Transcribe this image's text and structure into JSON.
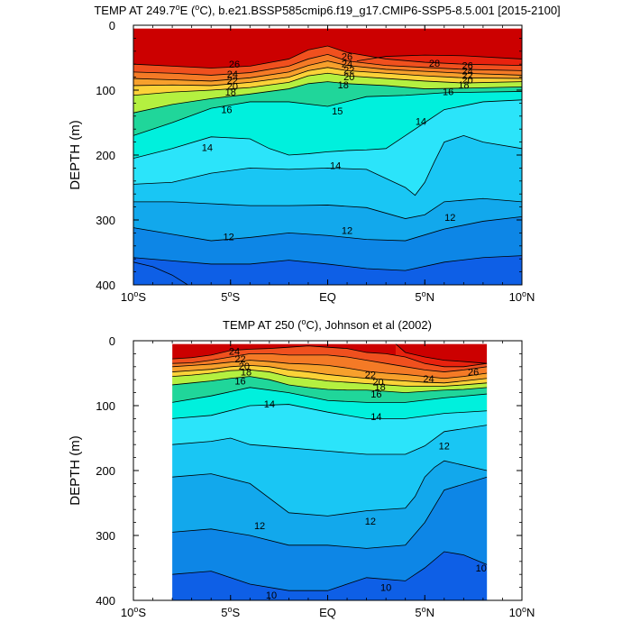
{
  "colors": {
    "t28": "#cc0000",
    "t26": "#e8220e",
    "t24": "#f0501e",
    "t22": "#f47a26",
    "t20": "#f7a02c",
    "t19": "#fbd238",
    "t18": "#fffb3c",
    "t17": "#b4f040",
    "t16": "#4ae04a",
    "t15": "#20d69a",
    "t14": "#00f0dd",
    "t13": "#2be4fa",
    "t12": "#19c6f4",
    "t11": "#12a8ec",
    "t10": "#0d86e6",
    "t9": "#0e5fe6"
  },
  "chart_data": [
    {
      "type": "contour",
      "title_main": "TEMP AT 249.7",
      "title_deg": "o",
      "title_rest": "E (",
      "title_unit_deg": "o",
      "title_tail": "C), b.e21.BSSP585cmip6.f19_g17.CMIP6-SSP5-8.5.001 [2015-2100]",
      "ylabel": "DEPTH (m)",
      "xlim": [
        -10,
        10
      ],
      "ylim": [
        0,
        400
      ],
      "x_ticks": [
        {
          "v": -10,
          "t": "10",
          "h": "S"
        },
        {
          "v": -5,
          "t": "5",
          "h": "S"
        },
        {
          "v": 0,
          "t": "EQ",
          "h": ""
        },
        {
          "v": 5,
          "t": "5",
          "h": "N"
        },
        {
          "v": 10,
          "t": "10",
          "h": "N"
        }
      ],
      "y_ticks": [
        0,
        100,
        200,
        300,
        400
      ],
      "data_extent": {
        "x": [
          -10,
          10
        ],
        "y": [
          5,
          400
        ]
      },
      "isotherms": [
        {
          "level": 28,
          "x": [
            1.5,
            3,
            5,
            7,
            10
          ],
          "y": [
            55,
            48,
            46,
            47,
            52
          ]
        },
        {
          "level": 26,
          "x": [
            -10,
            -8,
            -6,
            -4,
            -2,
            -1,
            0,
            1,
            3,
            5,
            7,
            10
          ],
          "y": [
            60,
            63,
            66,
            63,
            52,
            38,
            32,
            42,
            52,
            57,
            60,
            62
          ]
        },
        {
          "level": 24,
          "x": [
            -10,
            -8,
            -6,
            -4,
            -2,
            -1,
            0,
            1,
            3,
            5,
            7,
            10
          ],
          "y": [
            72,
            74,
            77,
            73,
            63,
            52,
            45,
            55,
            62,
            65,
            68,
            70
          ]
        },
        {
          "level": 22,
          "x": [
            -10,
            -8,
            -6,
            -4,
            -2,
            -1,
            0,
            1,
            3,
            5,
            7,
            10
          ],
          "y": [
            82,
            84,
            86,
            81,
            72,
            62,
            55,
            62,
            68,
            71,
            74,
            77
          ]
        },
        {
          "level": 20,
          "x": [
            -10,
            -8,
            -6,
            -4,
            -2,
            -1,
            0,
            1,
            3,
            5,
            7,
            10
          ],
          "y": [
            93,
            92,
            93,
            88,
            80,
            70,
            65,
            70,
            74,
            78,
            81,
            82
          ]
        },
        {
          "level": 18,
          "x": [
            -10,
            -8,
            -6,
            -4,
            -2,
            -1,
            0,
            1,
            3,
            5,
            7,
            10
          ],
          "y": [
            108,
            103,
            100,
            96,
            88,
            78,
            74,
            78,
            82,
            86,
            89,
            87
          ]
        },
        {
          "level": 16,
          "x": [
            -10,
            -8,
            -6,
            -4,
            -2,
            -1,
            0,
            1,
            3,
            5,
            7,
            10
          ],
          "y": [
            135,
            122,
            113,
            106,
            98,
            90,
            87,
            90,
            93,
            98,
            97,
            95
          ]
        },
        {
          "level": 15,
          "x": [
            -10,
            -8,
            -6,
            -4,
            -2,
            0,
            2,
            4,
            6,
            8,
            10
          ],
          "y": [
            170,
            150,
            128,
            118,
            118,
            125,
            110,
            108,
            104,
            103,
            102
          ]
        },
        {
          "level": 14,
          "x": [
            -10,
            -8,
            -6,
            -4,
            -3,
            -2,
            -1,
            0,
            1,
            2,
            3,
            4,
            5,
            6,
            8,
            10
          ],
          "y": [
            205,
            190,
            172,
            175,
            190,
            200,
            198,
            195,
            193,
            192,
            190,
            170,
            150,
            130,
            118,
            115
          ]
        },
        {
          "level": 13,
          "x": [
            -10,
            -8,
            -6,
            -4,
            -2,
            0,
            2,
            4,
            4.5,
            5,
            5.5,
            6,
            7,
            8,
            10
          ],
          "y": [
            245,
            242,
            228,
            220,
            222,
            220,
            222,
            250,
            262,
            242,
            210,
            180,
            170,
            180,
            190
          ]
        },
        {
          "level": 12,
          "x": [
            -10,
            -8,
            -6,
            -4,
            -2,
            0,
            2,
            4,
            5,
            6,
            8,
            10
          ],
          "y": [
            272,
            272,
            275,
            278,
            278,
            277,
            281,
            298,
            292,
            272,
            267,
            272
          ]
        },
        {
          "level": 11,
          "x": [
            -10,
            -8,
            -6,
            -4,
            -2,
            0,
            2,
            4,
            6,
            8,
            10
          ],
          "y": [
            312,
            322,
            332,
            327,
            320,
            324,
            330,
            332,
            314,
            302,
            295
          ]
        },
        {
          "level": 10,
          "x": [
            -10,
            -8,
            -6,
            -4,
            -2,
            0,
            2,
            4,
            6,
            8,
            10
          ],
          "y": [
            358,
            363,
            368,
            368,
            362,
            368,
            375,
            378,
            365,
            358,
            355
          ]
        },
        {
          "level": 9,
          "x": [
            -10,
            -9,
            -8,
            -7.2
          ],
          "y": [
            365,
            372,
            385,
            400
          ]
        }
      ],
      "labels": [
        {
          "text": "26",
          "x": -4.8,
          "y": 60
        },
        {
          "text": "24",
          "x": -4.9,
          "y": 75
        },
        {
          "text": "22",
          "x": -4.9,
          "y": 85
        },
        {
          "text": "20",
          "x": -4.9,
          "y": 94
        },
        {
          "text": "18",
          "x": -5.0,
          "y": 103
        },
        {
          "text": "16",
          "x": -5.2,
          "y": 130
        },
        {
          "text": "15",
          "x": 0.5,
          "y": 132
        },
        {
          "text": "14",
          "x": -6.2,
          "y": 188
        },
        {
          "text": "14",
          "x": 0.4,
          "y": 216
        },
        {
          "text": "14",
          "x": 4.8,
          "y": 148
        },
        {
          "text": "12",
          "x": -5.1,
          "y": 326
        },
        {
          "text": "12",
          "x": 1.0,
          "y": 316
        },
        {
          "text": "12",
          "x": 6.3,
          "y": 296
        },
        {
          "text": "26",
          "x": 1.0,
          "y": 48
        },
        {
          "text": "24",
          "x": 1.0,
          "y": 59
        },
        {
          "text": "22",
          "x": 1.1,
          "y": 69
        },
        {
          "text": "20",
          "x": 1.1,
          "y": 79
        },
        {
          "text": "18",
          "x": 0.8,
          "y": 92
        },
        {
          "text": "28",
          "x": 5.5,
          "y": 58
        },
        {
          "text": "26",
          "x": 7.2,
          "y": 62
        },
        {
          "text": "24",
          "x": 7.2,
          "y": 70
        },
        {
          "text": "22",
          "x": 7.2,
          "y": 77
        },
        {
          "text": "20",
          "x": 7.2,
          "y": 84
        },
        {
          "text": "18",
          "x": 7.0,
          "y": 92
        },
        {
          "text": "16",
          "x": 6.2,
          "y": 102
        }
      ]
    },
    {
      "type": "contour",
      "title_main": "TEMP AT 250 (",
      "title_deg": "o",
      "title_rest": "C), Johnson et al (2002)",
      "title_unit_deg": "",
      "title_tail": "",
      "ylabel": "DEPTH (m)",
      "xlim": [
        -10,
        10
      ],
      "ylim": [
        0,
        400
      ],
      "x_ticks": [
        {
          "v": -10,
          "t": "10",
          "h": "S"
        },
        {
          "v": -5,
          "t": "5",
          "h": "S"
        },
        {
          "v": 0,
          "t": "EQ",
          "h": ""
        },
        {
          "v": 5,
          "t": "5",
          "h": "N"
        },
        {
          "v": 10,
          "t": "10",
          "h": "N"
        }
      ],
      "y_ticks": [
        0,
        100,
        200,
        300,
        400
      ],
      "data_extent": {
        "x": [
          -8,
          8.2
        ],
        "y": [
          5,
          400
        ]
      },
      "isotherms": [
        {
          "level": 28,
          "x": [
            3.5,
            4,
            5,
            6,
            7,
            8.2
          ],
          "y": [
            5,
            18,
            25,
            30,
            32,
            35
          ]
        },
        {
          "level": 26,
          "x": [
            -8,
            -7,
            -6,
            -5,
            -4,
            -3,
            -2,
            -1,
            0,
            1,
            2,
            3,
            4,
            5,
            6,
            7,
            8.2
          ],
          "y": [
            28,
            26,
            22,
            15,
            13,
            12,
            10,
            8,
            10,
            12,
            18,
            20,
            25,
            35,
            40,
            40,
            35
          ]
        },
        {
          "level": 24,
          "x": [
            -8,
            -7,
            -6,
            -5,
            -4,
            -3,
            -2,
            -1,
            0,
            1,
            2,
            3,
            4,
            5,
            6,
            7,
            8.2
          ],
          "y": [
            35,
            34,
            30,
            25,
            20,
            20,
            22,
            22,
            22,
            25,
            30,
            35,
            40,
            45,
            48,
            45,
            40
          ]
        },
        {
          "level": 22,
          "x": [
            -8,
            -7,
            -6,
            -5,
            -4,
            -3,
            -2,
            -1,
            0,
            1,
            2,
            3,
            4,
            5,
            6,
            7,
            8.2
          ],
          "y": [
            40,
            38,
            36,
            33,
            30,
            32,
            35,
            36,
            38,
            42,
            47,
            50,
            52,
            55,
            58,
            55,
            50
          ]
        },
        {
          "level": 20,
          "x": [
            -8,
            -7,
            -6,
            -5,
            -4,
            -3,
            -2,
            -1,
            0,
            1,
            2,
            3,
            4,
            5,
            6,
            7,
            8.2
          ],
          "y": [
            48,
            46,
            44,
            40,
            38,
            40,
            45,
            48,
            52,
            55,
            58,
            60,
            62,
            64,
            65,
            62,
            58
          ]
        },
        {
          "level": 18,
          "x": [
            -8,
            -7,
            -6,
            -5,
            -4,
            -3,
            -2,
            -1,
            0,
            1,
            2,
            3,
            4,
            5,
            6,
            7,
            8.2
          ],
          "y": [
            55,
            53,
            50,
            46,
            45,
            48,
            55,
            58,
            62,
            64,
            66,
            68,
            70,
            70,
            70,
            68,
            65
          ]
        },
        {
          "level": 16,
          "x": [
            -8,
            -7,
            -6,
            -5,
            -4,
            -3,
            -2,
            -1,
            0,
            1,
            2,
            3,
            4,
            5,
            6,
            7,
            8.2
          ],
          "y": [
            68,
            65,
            62,
            58,
            55,
            60,
            68,
            72,
            75,
            76,
            76,
            78,
            80,
            78,
            76,
            75,
            72
          ]
        },
        {
          "level": 15,
          "x": [
            -8,
            -6,
            -4,
            -2,
            0,
            2,
            4,
            6,
            8.2
          ],
          "y": [
            95,
            85,
            72,
            80,
            92,
            95,
            95,
            88,
            82
          ]
        },
        {
          "level": 14,
          "x": [
            -8,
            -6,
            -4,
            -2,
            0,
            2,
            4,
            6,
            8.2
          ],
          "y": [
            120,
            115,
            100,
            98,
            110,
            120,
            120,
            112,
            108
          ]
        },
        {
          "level": 13,
          "x": [
            -8,
            -6,
            -5,
            -4,
            -2,
            0,
            2,
            4,
            5,
            6,
            8.2
          ],
          "y": [
            160,
            155,
            150,
            160,
            165,
            170,
            175,
            175,
            162,
            140,
            130
          ]
        },
        {
          "level": 12,
          "x": [
            -8,
            -6,
            -4,
            -2,
            0,
            2,
            4,
            4.5,
            5,
            5.5,
            6,
            8.2
          ],
          "y": [
            210,
            205,
            220,
            265,
            270,
            262,
            258,
            240,
            210,
            195,
            185,
            200
          ]
        },
        {
          "level": 11,
          "x": [
            -8,
            -6,
            -4,
            -2,
            0,
            2,
            4,
            5,
            6,
            8.2
          ],
          "y": [
            295,
            290,
            300,
            315,
            315,
            320,
            315,
            280,
            230,
            210
          ]
        },
        {
          "level": 10,
          "x": [
            -8,
            -6,
            -4,
            -2,
            0,
            2,
            4,
            5,
            6,
            7,
            8.2
          ],
          "y": [
            360,
            355,
            375,
            385,
            385,
            365,
            370,
            350,
            325,
            330,
            345
          ]
        }
      ],
      "labels": [
        {
          "text": "24",
          "x": -4.8,
          "y": 16
        },
        {
          "text": "22",
          "x": -4.5,
          "y": 28
        },
        {
          "text": "20",
          "x": -4.3,
          "y": 39
        },
        {
          "text": "18",
          "x": -4.2,
          "y": 48
        },
        {
          "text": "16",
          "x": -4.5,
          "y": 62
        },
        {
          "text": "14",
          "x": -3.0,
          "y": 97
        },
        {
          "text": "22",
          "x": 2.2,
          "y": 52
        },
        {
          "text": "20",
          "x": 2.6,
          "y": 63
        },
        {
          "text": "18",
          "x": 2.7,
          "y": 71
        },
        {
          "text": "16",
          "x": 2.5,
          "y": 82
        },
        {
          "text": "24",
          "x": 5.2,
          "y": 58
        },
        {
          "text": "26",
          "x": 7.5,
          "y": 48
        },
        {
          "text": "14",
          "x": 2.5,
          "y": 117
        },
        {
          "text": "12",
          "x": 6.0,
          "y": 162
        },
        {
          "text": "12",
          "x": -3.5,
          "y": 285
        },
        {
          "text": "12",
          "x": 2.2,
          "y": 278
        },
        {
          "text": "10",
          "x": -2.9,
          "y": 392
        },
        {
          "text": "10",
          "x": 3.0,
          "y": 380
        },
        {
          "text": "10",
          "x": 7.9,
          "y": 350
        }
      ]
    }
  ]
}
